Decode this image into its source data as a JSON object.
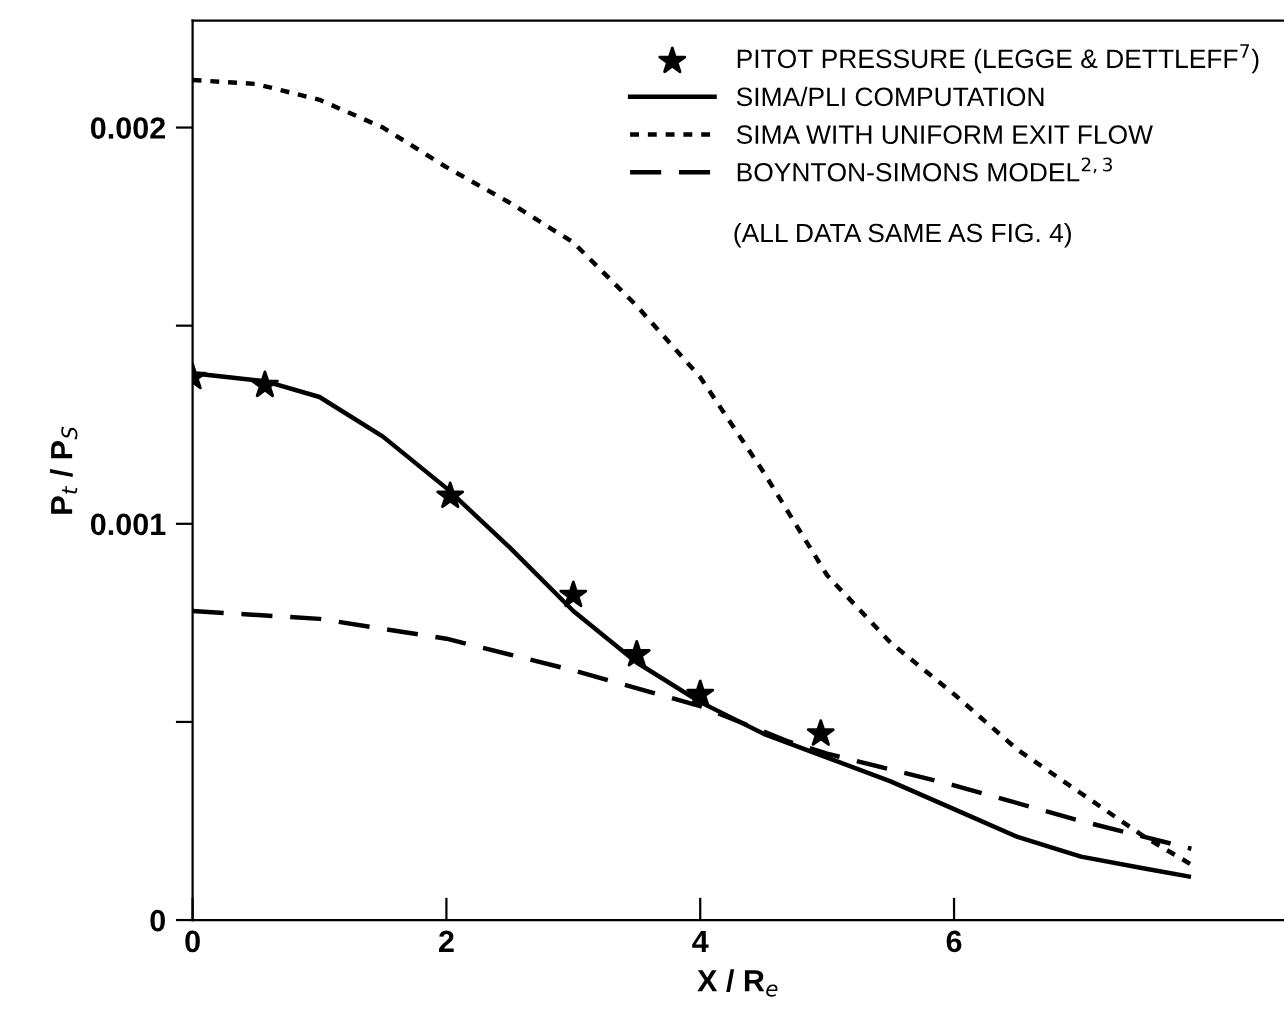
{
  "chart_data": {
    "type": "line",
    "xlabel": "X / R$_{e}$",
    "ylabel": "P$_{t}$ / P$_{S}$",
    "xlim": [
      0,
      8.6
    ],
    "ylim": [
      0,
      0.00227
    ],
    "xticks": [
      0,
      2,
      4,
      6
    ],
    "yticks": [
      0,
      {
        "value": 0.0005,
        "label": null
      },
      0.001,
      {
        "value": 0.0015,
        "label": null
      },
      0.002
    ],
    "legend": "top right",
    "grid": false,
    "annotations": [
      "(ALL DATA SAME AS FIG. 4)"
    ],
    "series": [
      {
        "name": "PITOT PRESSURE (LEGGE & DETTLEFF$^{7}$)",
        "type": "scatter",
        "marker": "star",
        "color": "#000000",
        "x": [
          0,
          0.57,
          2.03,
          3.0,
          3.5,
          4.0,
          4.95
        ],
        "values": [
          0.00137,
          0.00135,
          0.00107,
          0.00082,
          0.00067,
          0.00057,
          0.00047
        ]
      },
      {
        "name": "SIMA/PLI COMPUTATION",
        "line_style": "solid",
        "color": "#000000",
        "x": [
          0,
          0.57,
          1,
          1.5,
          2,
          2.5,
          3,
          3.5,
          4,
          4.5,
          5,
          5.5,
          6,
          6.5,
          7,
          7.5,
          7.85
        ],
        "values": [
          0.00138,
          0.00136,
          0.00132,
          0.00122,
          0.00109,
          0.00094,
          0.00078,
          0.00065,
          0.00055,
          0.00047,
          0.00041,
          0.00035,
          0.00028,
          0.00021,
          0.00016,
          0.00013,
          0.00011
        ]
      },
      {
        "name": "SIMA WITH UNIFORM EXIT FLOW",
        "line_style": "dotted",
        "color": "#000000",
        "x": [
          0,
          0.5,
          1,
          1.5,
          2,
          2.5,
          3,
          3.5,
          4,
          4.5,
          5,
          5.5,
          6,
          6.5,
          7,
          7.5,
          7.87
        ],
        "values": [
          0.00212,
          0.00211,
          0.00207,
          0.002,
          0.0019,
          0.00181,
          0.00171,
          0.00155,
          0.00137,
          0.00113,
          0.00087,
          0.0007,
          0.00057,
          0.00043,
          0.00032,
          0.00021,
          0.00014
        ]
      },
      {
        "name": "BOYNTON-SIMONS MODEL$^{2,3}$",
        "line_style": "dashed",
        "color": "#000000",
        "x": [
          0,
          1,
          2,
          3,
          4,
          4.7,
          5,
          6,
          7,
          7.87
        ],
        "values": [
          0.00078,
          0.00076,
          0.00071,
          0.00063,
          0.00054,
          0.00045,
          0.00042,
          0.00034,
          0.00025,
          0.00018
        ]
      }
    ]
  }
}
